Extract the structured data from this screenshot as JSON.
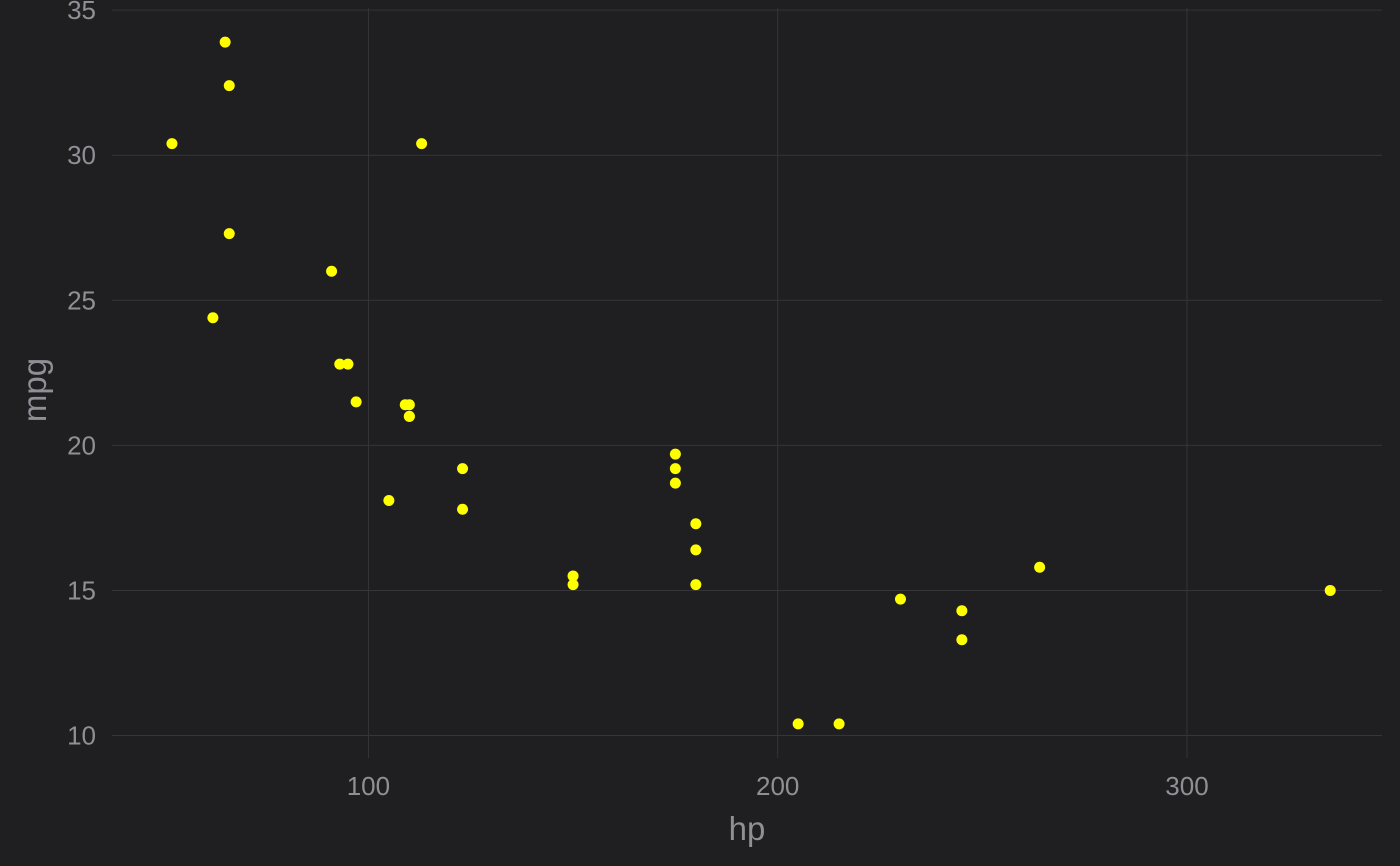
{
  "colors": {
    "background": "#1f1f21",
    "grid": "#35353a",
    "text": "#8f8f96",
    "point": "#ffff00"
  },
  "chart_data": {
    "type": "scatter",
    "title": "",
    "xlabel": "hp",
    "ylabel": "mpg",
    "xlim": [
      37.35,
      347.65
    ],
    "ylim": [
      9.225,
      35.075
    ],
    "x_ticks": [
      100,
      200,
      300
    ],
    "y_ticks": [
      10,
      15,
      20,
      25,
      30,
      35
    ],
    "grid": true,
    "legend": "none",
    "series": [
      {
        "points": [
          {
            "x": 110,
            "y": 21.0
          },
          {
            "x": 110,
            "y": 21.0
          },
          {
            "x": 93,
            "y": 22.8
          },
          {
            "x": 110,
            "y": 21.4
          },
          {
            "x": 175,
            "y": 18.7
          },
          {
            "x": 105,
            "y": 18.1
          },
          {
            "x": 245,
            "y": 14.3
          },
          {
            "x": 62,
            "y": 24.4
          },
          {
            "x": 95,
            "y": 22.8
          },
          {
            "x": 123,
            "y": 19.2
          },
          {
            "x": 123,
            "y": 17.8
          },
          {
            "x": 180,
            "y": 16.4
          },
          {
            "x": 180,
            "y": 17.3
          },
          {
            "x": 180,
            "y": 15.2
          },
          {
            "x": 205,
            "y": 10.4
          },
          {
            "x": 215,
            "y": 10.4
          },
          {
            "x": 230,
            "y": 14.7
          },
          {
            "x": 66,
            "y": 32.4
          },
          {
            "x": 52,
            "y": 30.4
          },
          {
            "x": 65,
            "y": 33.9
          },
          {
            "x": 97,
            "y": 21.5
          },
          {
            "x": 150,
            "y": 15.5
          },
          {
            "x": 150,
            "y": 15.2
          },
          {
            "x": 245,
            "y": 13.3
          },
          {
            "x": 175,
            "y": 19.2
          },
          {
            "x": 66,
            "y": 27.3
          },
          {
            "x": 91,
            "y": 26.0
          },
          {
            "x": 113,
            "y": 30.4
          },
          {
            "x": 264,
            "y": 15.8
          },
          {
            "x": 175,
            "y": 19.7
          },
          {
            "x": 335,
            "y": 15.0
          },
          {
            "x": 109,
            "y": 21.4
          }
        ]
      }
    ]
  }
}
